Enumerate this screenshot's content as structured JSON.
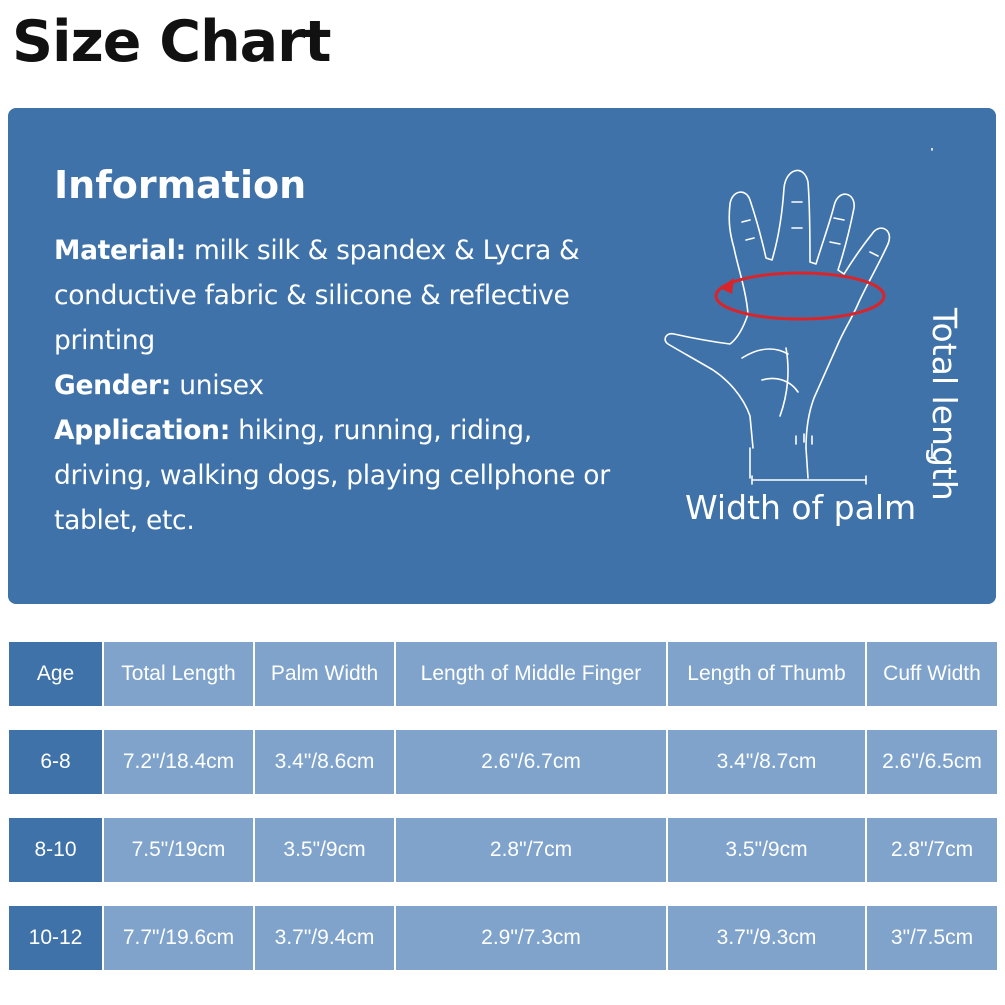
{
  "title": "Size Chart",
  "info": {
    "heading": "Information",
    "material_label": "Material:",
    "material_value": " milk silk & spandex & Lycra & conductive fabric & silicone & reflective printing",
    "gender_label": "Gender:",
    "gender_value": " unisex",
    "application_label": "Application:",
    "application_value": " hiking, running, riding, driving, walking dogs, playing cellphone or tablet, etc."
  },
  "diagram": {
    "total_length_label": "Total length",
    "palm_width_label": "Width of palm",
    "accent_color": "#d9252a"
  },
  "table": {
    "headers": [
      "Age",
      "Total Length",
      "Palm Width",
      "Length of Middle Finger",
      "Length of Thumb",
      "Cuff Width"
    ],
    "rows": [
      [
        "6-8",
        "7.2\"/18.4cm",
        "3.4\"/8.6cm",
        "2.6\"/6.7cm",
        "3.4\"/8.7cm",
        "2.6\"/6.5cm"
      ],
      [
        "8-10",
        "7.5\"/19cm",
        "3.5\"/9cm",
        "2.8\"/7cm",
        "3.5\"/9cm",
        "2.8\"/7cm"
      ],
      [
        "10-12",
        "7.7\"/19.6cm",
        "3.7\"/9.4cm",
        "2.9\"/7.3cm",
        "3.7\"/9.3cm",
        "3\"/7.5cm"
      ]
    ]
  },
  "colors": {
    "panel": "#3f72a9",
    "cell": "#7fa3cb",
    "age_cell": "#3f72a9"
  }
}
